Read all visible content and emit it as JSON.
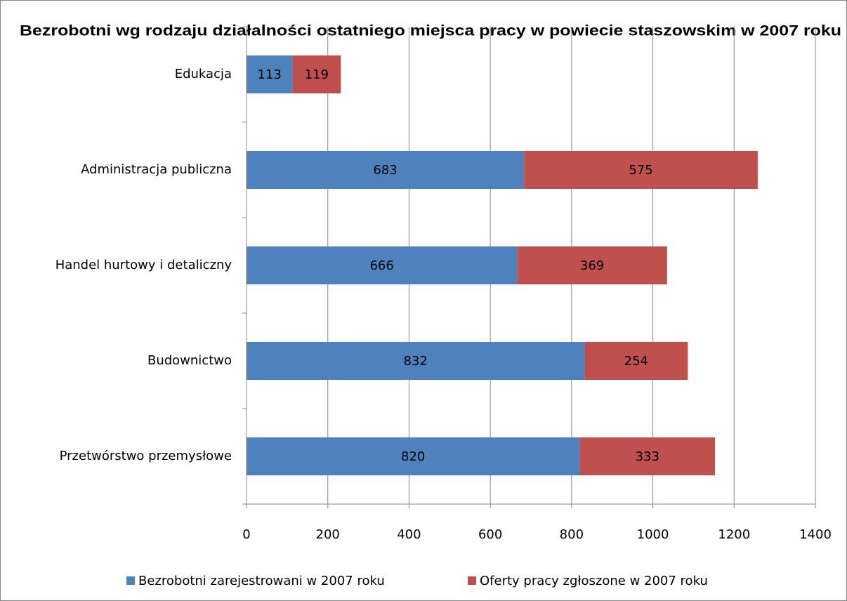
{
  "chart_data": {
    "type": "stacked-bar-horizontal",
    "title": "Bezrobotni wg rodzaju działalności ostatniego miejsca pracy w powiecie staszowskim w 2007 roku",
    "categories": [
      "Edukacja",
      "Administracja publiczna",
      "Handel hurtowy i detaliczny",
      "Budownictwo",
      "Przetwórstwo przemysłowe"
    ],
    "series": [
      {
        "name": "Bezrobotni zarejestrowani w 2007 roku",
        "color": "#4f81bd",
        "values": [
          113,
          683,
          666,
          832,
          820
        ]
      },
      {
        "name": "Oferty pracy zgłoszone w 2007 roku",
        "color": "#c0504d",
        "values": [
          119,
          575,
          369,
          254,
          333
        ]
      }
    ],
    "xlim": [
      0,
      1400
    ],
    "xticks": [
      0,
      200,
      400,
      600,
      800,
      1000,
      1200,
      1400
    ],
    "grid": true,
    "legend": "bottom"
  }
}
